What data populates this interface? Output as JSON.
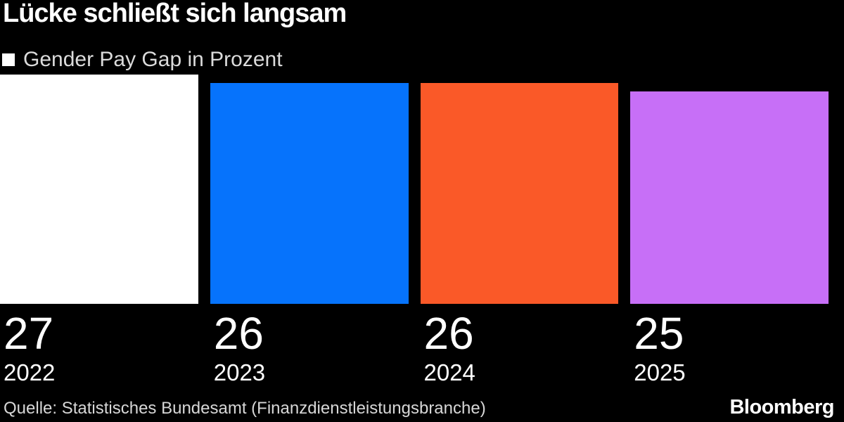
{
  "header": {
    "title": "Lücke schließt sich langsam",
    "legend_label": "Gender Pay Gap in Prozent",
    "legend_swatch_color": "#ffffff"
  },
  "chart_data": {
    "type": "bar",
    "title": "Lücke schließt sich langsam",
    "legend": "Gender Pay Gap in Prozent",
    "legend_position": "top-left",
    "categories": [
      "2022",
      "2023",
      "2024",
      "2025"
    ],
    "values": [
      27,
      26,
      26,
      25
    ],
    "value_labels": [
      "27",
      "26",
      "26",
      "25"
    ],
    "bar_colors": [
      "#ffffff",
      "#0673fc",
      "#fa5928",
      "#c76ff7"
    ],
    "xlabel": "",
    "ylabel": "Gender Pay Gap in Prozent",
    "ylim": [
      0,
      27
    ],
    "grid": false,
    "background": "#000000"
  },
  "footer": {
    "source": "Quelle: Statistisches Bundesamt (Finanzdienstleistungsbranche)",
    "brand": "Bloomberg"
  }
}
